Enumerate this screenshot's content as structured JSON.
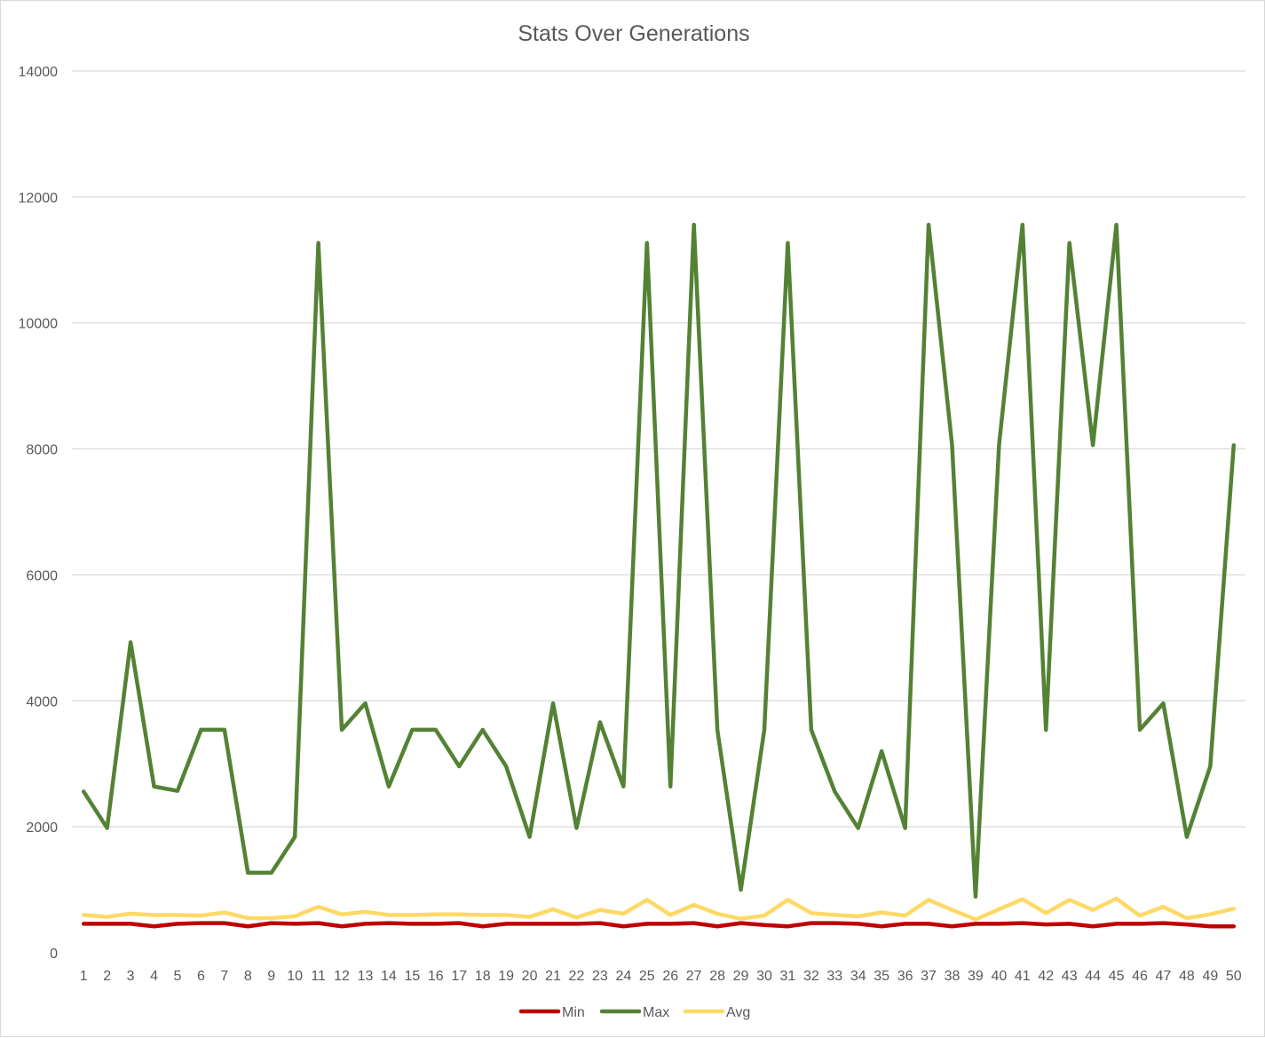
{
  "chart_data": {
    "type": "line",
    "title": "Stats Over Generations",
    "xlabel": "",
    "ylabel": "",
    "ylim": [
      0,
      14000
    ],
    "yticks": [
      0,
      2000,
      4000,
      6000,
      8000,
      10000,
      12000,
      14000
    ],
    "grid": true,
    "legend_position": "bottom",
    "x": [
      1,
      2,
      3,
      4,
      5,
      6,
      7,
      8,
      9,
      10,
      11,
      12,
      13,
      14,
      15,
      16,
      17,
      18,
      19,
      20,
      21,
      22,
      23,
      24,
      25,
      26,
      27,
      28,
      29,
      30,
      31,
      32,
      33,
      34,
      35,
      36,
      37,
      38,
      39,
      40,
      41,
      42,
      43,
      44,
      45,
      46,
      47,
      48,
      49,
      50
    ],
    "series": [
      {
        "name": "Min",
        "color": "#c00000",
        "values": [
          460,
          460,
          460,
          420,
          460,
          470,
          470,
          420,
          470,
          460,
          470,
          420,
          460,
          470,
          460,
          460,
          470,
          420,
          460,
          460,
          460,
          460,
          470,
          420,
          460,
          460,
          470,
          420,
          470,
          440,
          420,
          470,
          470,
          460,
          420,
          460,
          460,
          420,
          460,
          460,
          470,
          450,
          460,
          420,
          460,
          460,
          470,
          450,
          420,
          420
        ]
      },
      {
        "name": "Max",
        "color": "#548235",
        "values": [
          2560,
          1980,
          4930,
          2640,
          2570,
          3540,
          3540,
          1270,
          1270,
          1840,
          11270,
          3540,
          3960,
          2640,
          3540,
          3540,
          2960,
          3540,
          2960,
          1840,
          3960,
          1980,
          3660,
          2640,
          11270,
          2640,
          11560,
          3540,
          1000,
          3540,
          11270,
          3540,
          2560,
          1980,
          3200,
          1980,
          11560,
          8060,
          890,
          8060,
          11560,
          3540,
          11270,
          8060,
          11560,
          3540,
          3960,
          1840,
          2960,
          8060
        ]
      },
      {
        "name": "Avg",
        "color": "#ffd966",
        "values": [
          600,
          570,
          620,
          600,
          600,
          590,
          640,
          550,
          550,
          580,
          730,
          610,
          650,
          600,
          600,
          610,
          610,
          600,
          600,
          570,
          690,
          560,
          680,
          620,
          840,
          600,
          760,
          620,
          540,
          590,
          840,
          630,
          600,
          580,
          640,
          590,
          840,
          680,
          530,
          690,
          850,
          630,
          840,
          680,
          860,
          590,
          730,
          550,
          610,
          700
        ]
      }
    ]
  }
}
